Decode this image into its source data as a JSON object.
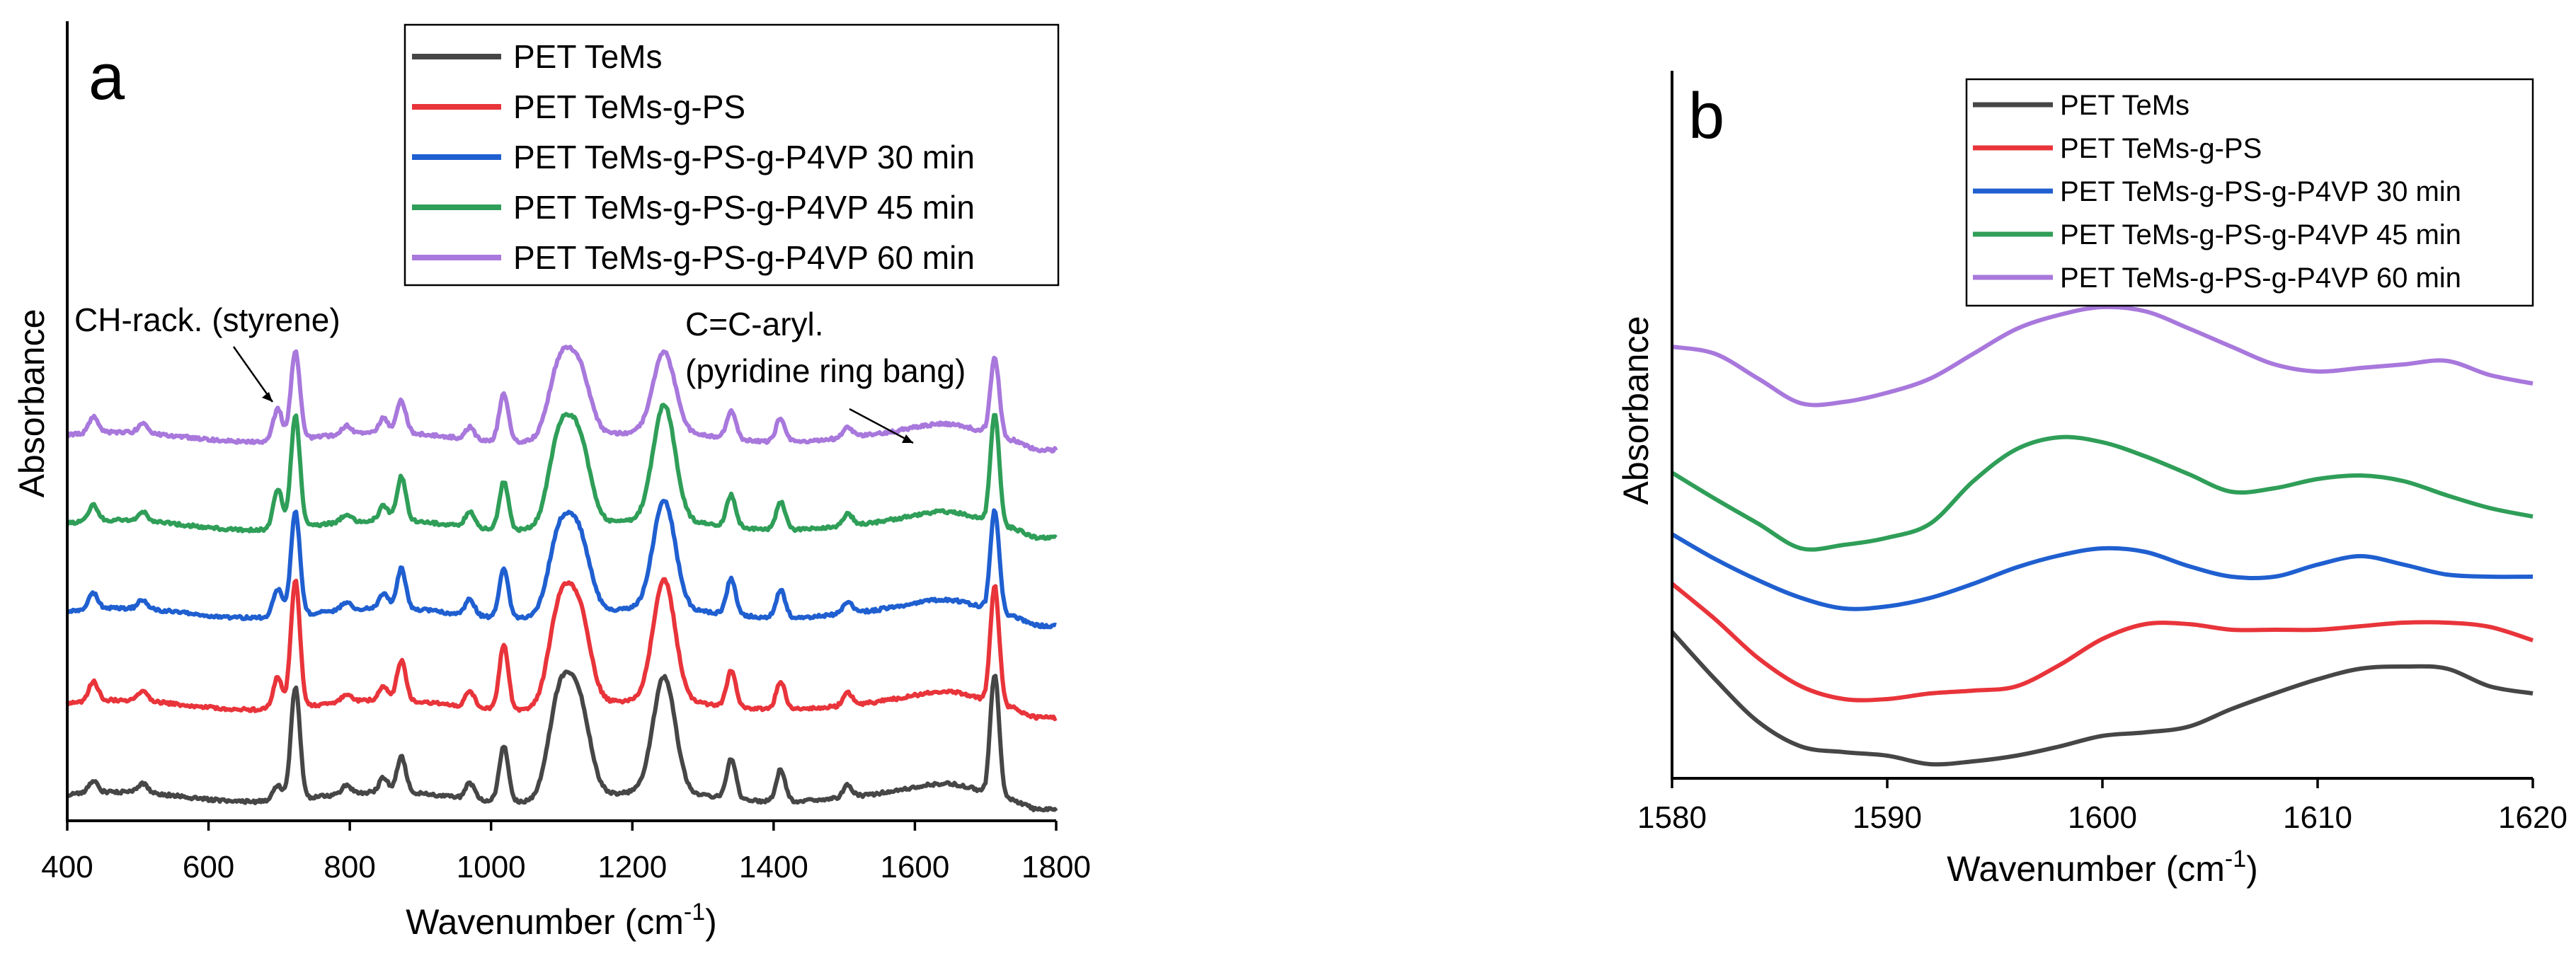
{
  "chart_data": [
    {
      "id": "a",
      "type": "line",
      "panel_label": "a",
      "xlabel": "Wavenumber (cm",
      "xlabel_sup": "-1",
      "xlabel_end": ")",
      "ylabel": "Absorbance",
      "xlim": [
        400,
        1800
      ],
      "ylim": [
        0,
        1
      ],
      "xticks": [
        400,
        600,
        800,
        1000,
        1200,
        1400,
        1600,
        1800
      ],
      "grid": false,
      "legend_position": "top-right",
      "annotations": [
        {
          "text": "CH-rack. (styrene)",
          "x": 720,
          "y": 0.72
        },
        {
          "text": "C=C-aryl.",
          "x": 1600,
          "y": 0.66
        },
        {
          "text": "(pyridine ring bang)",
          "x": 1600,
          "y": 0.63
        }
      ],
      "series": [
        {
          "name": "PET TeMs",
          "color": "#464646",
          "baseline": 0.03,
          "peaks": [
            [
              437,
              0.015
            ],
            [
              507,
              0.012
            ],
            [
              698,
              0.02
            ],
            [
              723,
              0.14
            ],
            [
              795,
              0.01
            ],
            [
              848,
              0.018
            ],
            [
              873,
              0.045
            ],
            [
              970,
              0.02
            ],
            [
              1018,
              0.07
            ],
            [
              1097,
              0.125
            ],
            [
              1125,
              0.11
            ],
            [
              1245,
              0.145
            ],
            [
              1340,
              0.05
            ],
            [
              1410,
              0.04
            ],
            [
              1505,
              0.015
            ],
            [
              1713,
              0.155
            ]
          ]
        },
        {
          "name": "PET TeMs-g-PS",
          "color": "#e8343a",
          "baseline": 0.145,
          "peaks": [
            [
              437,
              0.025
            ],
            [
              507,
              0.012
            ],
            [
              698,
              0.04
            ],
            [
              723,
              0.16
            ],
            [
              795,
              0.01
            ],
            [
              848,
              0.018
            ],
            [
              873,
              0.05
            ],
            [
              970,
              0.02
            ],
            [
              1018,
              0.08
            ],
            [
              1097,
              0.12
            ],
            [
              1125,
              0.11
            ],
            [
              1245,
              0.15
            ],
            [
              1340,
              0.045
            ],
            [
              1410,
              0.035
            ],
            [
              1505,
              0.015
            ],
            [
              1713,
              0.15
            ]
          ]
        },
        {
          "name": "PET TeMs-g-PS-g-P4VP 30 min",
          "color": "#1f5fd0",
          "baseline": 0.26,
          "peaks": [
            [
              437,
              0.02
            ],
            [
              507,
              0.012
            ],
            [
              698,
              0.035
            ],
            [
              723,
              0.13
            ],
            [
              795,
              0.01
            ],
            [
              848,
              0.018
            ],
            [
              873,
              0.05
            ],
            [
              970,
              0.02
            ],
            [
              1018,
              0.06
            ],
            [
              1097,
              0.1
            ],
            [
              1125,
              0.09
            ],
            [
              1245,
              0.135
            ],
            [
              1340,
              0.045
            ],
            [
              1410,
              0.035
            ],
            [
              1505,
              0.015
            ],
            [
              1713,
              0.13
            ]
          ]
        },
        {
          "name": "PET TeMs-g-PS-g-P4VP 45 min",
          "color": "#2f9e58",
          "baseline": 0.37,
          "peaks": [
            [
              437,
              0.02
            ],
            [
              507,
              0.012
            ],
            [
              698,
              0.05
            ],
            [
              723,
              0.14
            ],
            [
              795,
              0.01
            ],
            [
              848,
              0.018
            ],
            [
              873,
              0.055
            ],
            [
              970,
              0.02
            ],
            [
              1018,
              0.06
            ],
            [
              1097,
              0.11
            ],
            [
              1125,
              0.1
            ],
            [
              1245,
              0.145
            ],
            [
              1340,
              0.04
            ],
            [
              1410,
              0.035
            ],
            [
              1505,
              0.015
            ],
            [
              1713,
              0.14
            ]
          ]
        },
        {
          "name": "PET TeMs-g-PS-g-P4VP 60 min",
          "color": "#a878dc",
          "baseline": 0.48,
          "peaks": [
            [
              437,
              0.02
            ],
            [
              507,
              0.012
            ],
            [
              698,
              0.04
            ],
            [
              723,
              0.11
            ],
            [
              795,
              0.01
            ],
            [
              848,
              0.018
            ],
            [
              873,
              0.04
            ],
            [
              970,
              0.015
            ],
            [
              1018,
              0.06
            ],
            [
              1097,
              0.09
            ],
            [
              1125,
              0.08
            ],
            [
              1245,
              0.1
            ],
            [
              1340,
              0.035
            ],
            [
              1410,
              0.03
            ],
            [
              1505,
              0.012
            ],
            [
              1713,
              0.1
            ]
          ]
        }
      ]
    },
    {
      "id": "b",
      "type": "line",
      "panel_label": "b",
      "xlabel": "Wavenumber (cm",
      "xlabel_sup": "-1",
      "xlabel_end": ")",
      "ylabel": "Absorbance",
      "xlim": [
        1580,
        1620
      ],
      "ylim": [
        0,
        1
      ],
      "xticks": [
        1580,
        1590,
        1600,
        1610,
        1620
      ],
      "grid": false,
      "legend_position": "top-right",
      "series": [
        {
          "name": "PET TeMs",
          "color": "#464646",
          "x": [
            1580,
            1582,
            1584,
            1586,
            1588,
            1590,
            1592,
            1594,
            1596,
            1598,
            1600,
            1602,
            1604,
            1606,
            1608,
            1610,
            1612,
            1614,
            1616,
            1618,
            1620
          ],
          "y": [
            0.207,
            0.14,
            0.08,
            0.045,
            0.037,
            0.032,
            0.02,
            0.024,
            0.032,
            0.045,
            0.06,
            0.065,
            0.073,
            0.098,
            0.12,
            0.14,
            0.155,
            0.158,
            0.155,
            0.13,
            0.12
          ]
        },
        {
          "name": "PET TeMs-g-PS",
          "color": "#e8343a",
          "x": [
            1580,
            1582,
            1584,
            1586,
            1588,
            1590,
            1592,
            1594,
            1596,
            1598,
            1600,
            1602,
            1604,
            1606,
            1608,
            1610,
            1612,
            1614,
            1616,
            1618,
            1620
          ],
          "y": [
            0.275,
            0.225,
            0.17,
            0.13,
            0.112,
            0.112,
            0.12,
            0.124,
            0.13,
            0.16,
            0.197,
            0.218,
            0.218,
            0.21,
            0.21,
            0.21,
            0.215,
            0.22,
            0.22,
            0.214,
            0.195
          ]
        },
        {
          "name": "PET TeMs-g-PS-g-P4VP 30 min",
          "color": "#1f5fd0",
          "x": [
            1580,
            1582,
            1584,
            1586,
            1588,
            1590,
            1592,
            1594,
            1596,
            1598,
            1600,
            1602,
            1604,
            1606,
            1608,
            1610,
            1612,
            1614,
            1616,
            1618,
            1620
          ],
          "y": [
            0.345,
            0.31,
            0.28,
            0.255,
            0.24,
            0.243,
            0.255,
            0.275,
            0.298,
            0.315,
            0.325,
            0.32,
            0.3,
            0.285,
            0.285,
            0.302,
            0.314,
            0.302,
            0.288,
            0.285,
            0.285
          ]
        },
        {
          "name": "PET TeMs-g-PS-g-P4VP 45 min",
          "color": "#2f9e58",
          "x": [
            1580,
            1582,
            1584,
            1586,
            1588,
            1590,
            1592,
            1594,
            1596,
            1598,
            1600,
            1602,
            1604,
            1606,
            1608,
            1610,
            1612,
            1614,
            1616,
            1618,
            1620
          ],
          "y": [
            0.432,
            0.395,
            0.36,
            0.325,
            0.33,
            0.34,
            0.36,
            0.42,
            0.465,
            0.482,
            0.475,
            0.455,
            0.43,
            0.405,
            0.41,
            0.423,
            0.428,
            0.42,
            0.4,
            0.382,
            0.37
          ]
        },
        {
          "name": "PET TeMs-g-PS-g-P4VP 60 min",
          "color": "#a878dc",
          "x": [
            1580,
            1582,
            1584,
            1586,
            1588,
            1590,
            1592,
            1594,
            1596,
            1598,
            1600,
            1602,
            1604,
            1606,
            1608,
            1610,
            1612,
            1614,
            1616,
            1618,
            1620
          ],
          "y": [
            0.61,
            0.6,
            0.565,
            0.53,
            0.532,
            0.545,
            0.565,
            0.6,
            0.635,
            0.655,
            0.666,
            0.66,
            0.636,
            0.61,
            0.585,
            0.575,
            0.58,
            0.585,
            0.59,
            0.57,
            0.558
          ]
        }
      ]
    }
  ]
}
